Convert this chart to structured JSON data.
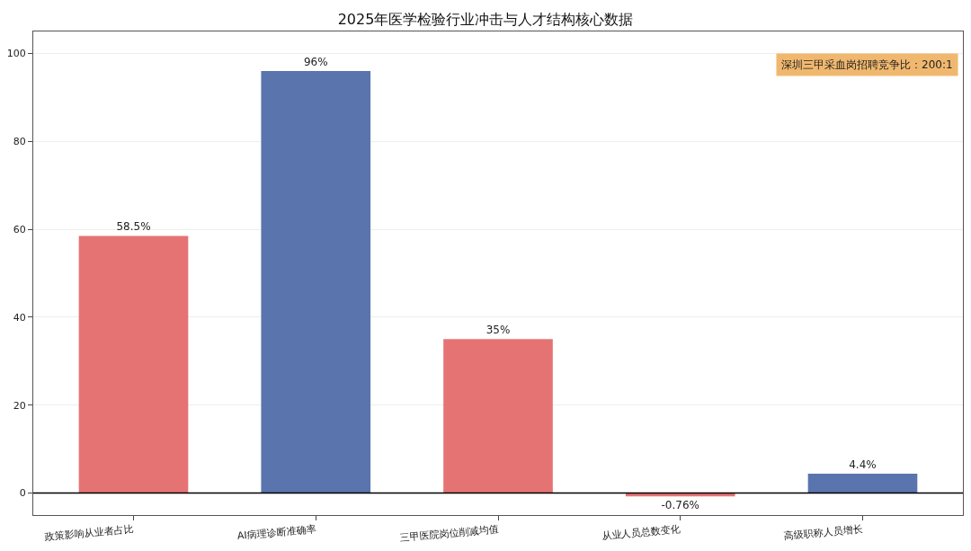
{
  "chart_data": {
    "type": "bar",
    "title": "2025年医学检验行业冲击与人才结构核心数据",
    "categories": [
      "政策影响从业者占比",
      "AI病理诊断准确率",
      "三甲医院岗位削减均值",
      "从业人员总数变化",
      "高级职称人员增长"
    ],
    "values": [
      58.5,
      96,
      35,
      -0.76,
      4.4
    ],
    "colors": [
      "#e57373",
      "#5a74ad",
      "#e57373",
      "#e57373",
      "#5a74ad"
    ],
    "value_labels": [
      "58.5%",
      "96%",
      "35%",
      "-0.76%",
      "4.4%"
    ],
    "ylim": [
      -5,
      105
    ],
    "yticks": [
      0,
      20,
      40,
      60,
      80,
      100
    ],
    "grid": "y",
    "ref_lines": [
      {
        "axis": "y",
        "value": 0,
        "color": "#000000"
      }
    ],
    "annotations": [
      "深圳三甲采血岗招聘竞争比：200:1"
    ]
  }
}
